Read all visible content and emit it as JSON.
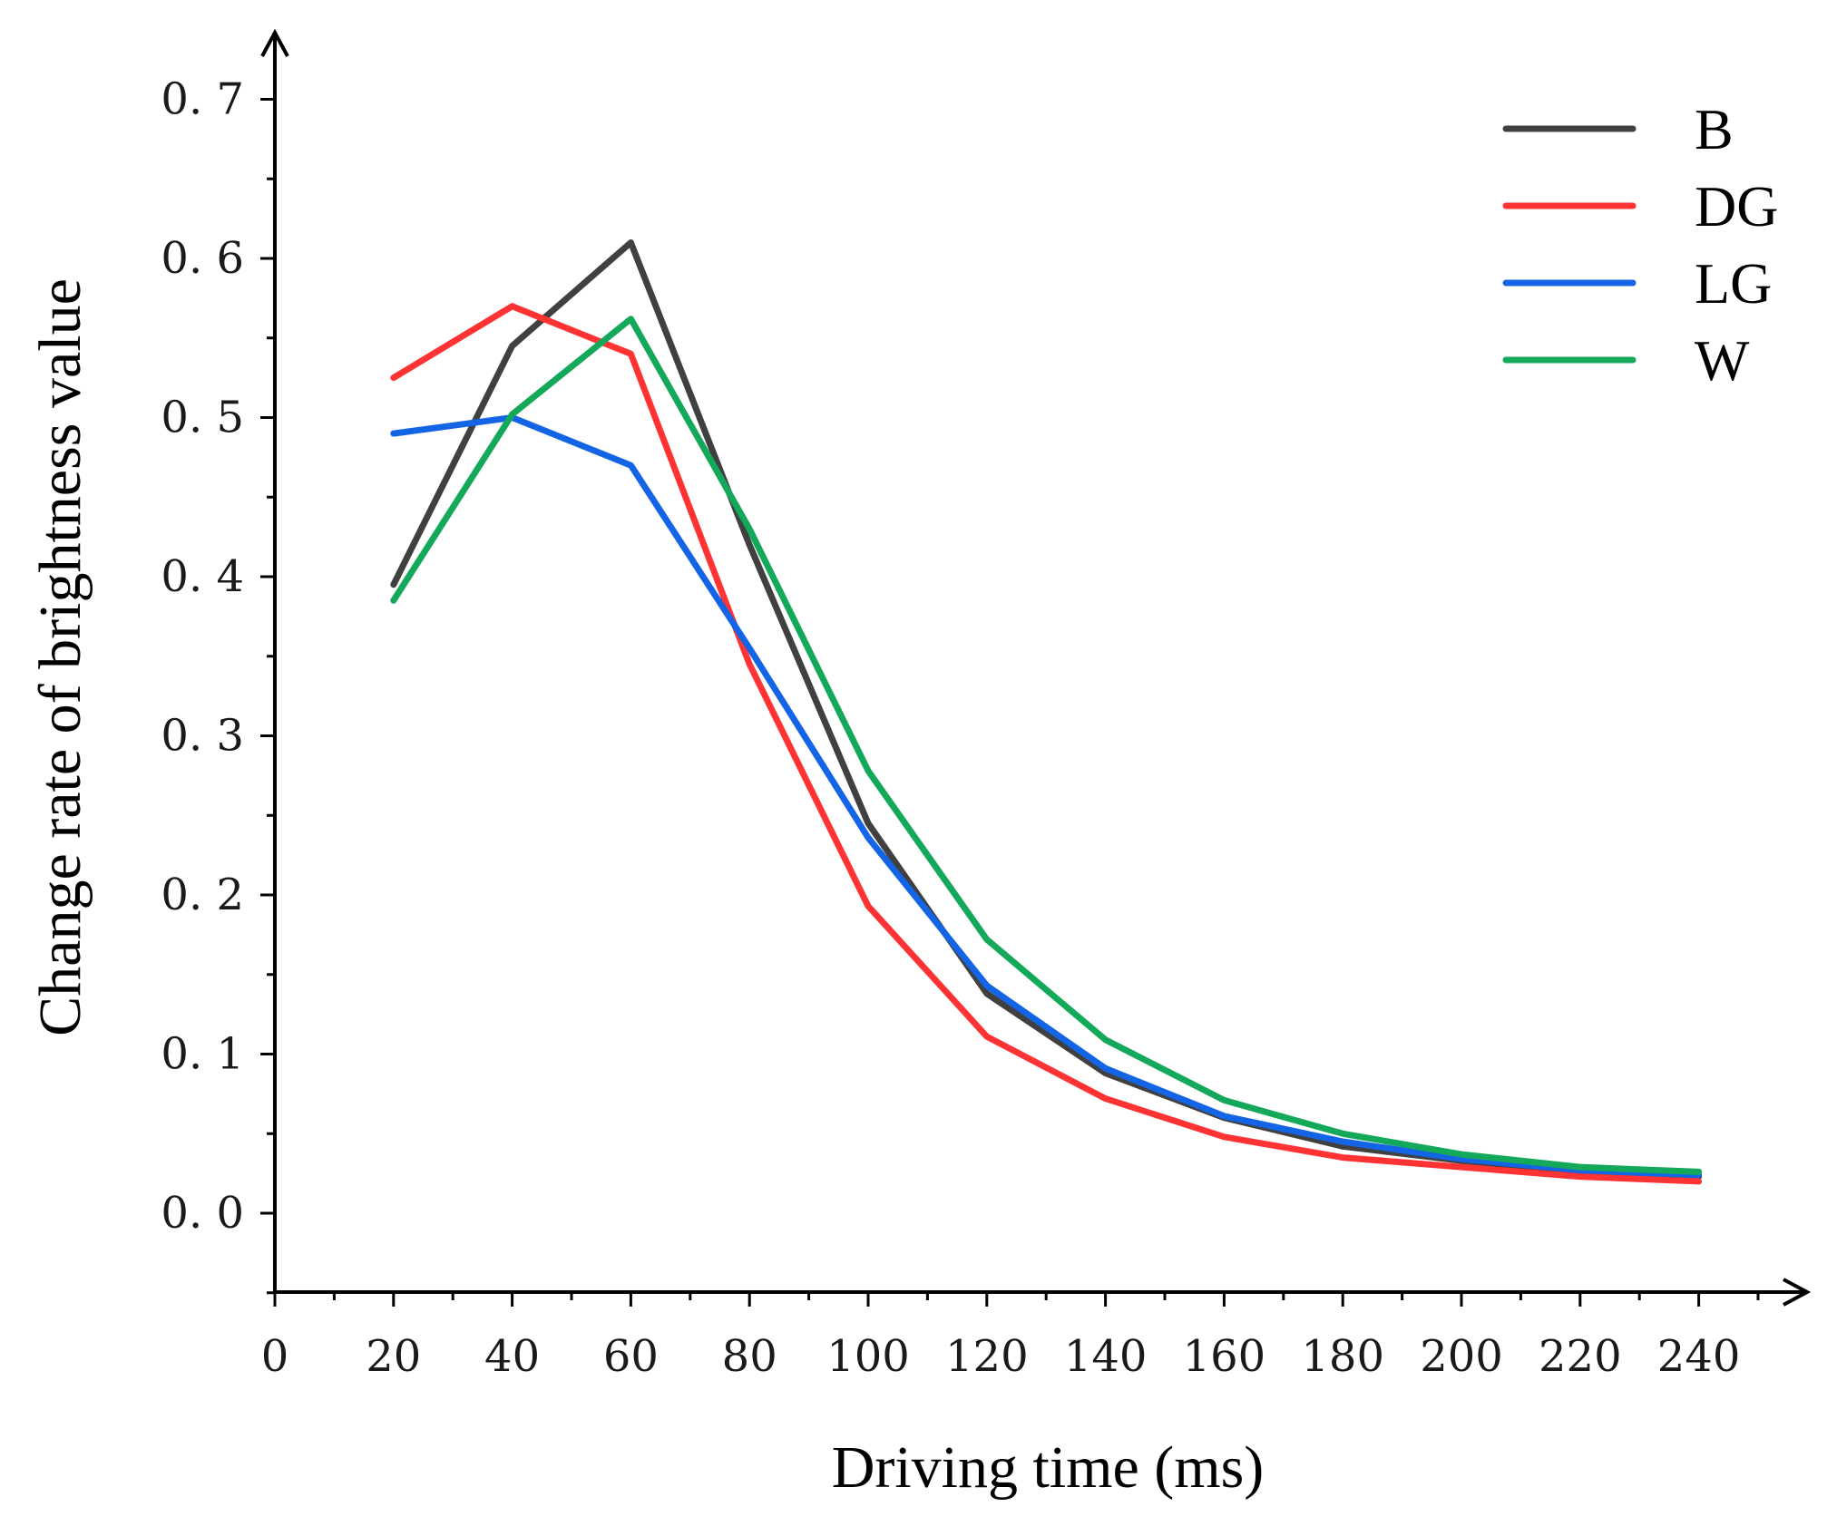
{
  "chart_data": {
    "type": "line",
    "title": "",
    "xlabel": "Driving time (ms)",
    "ylabel": "Change rate of brightness value",
    "x": [
      20,
      40,
      60,
      80,
      100,
      120,
      140,
      160,
      180,
      200,
      220,
      240
    ],
    "xlim": [
      0,
      250
    ],
    "ylim": [
      -0.05,
      0.7
    ],
    "x_ticks": [
      0,
      20,
      40,
      60,
      80,
      100,
      120,
      140,
      160,
      180,
      200,
      220,
      240
    ],
    "x_tick_labels": [
      "0",
      "20",
      "40",
      "60",
      "80",
      "100",
      "120",
      "140",
      "160",
      "180",
      "200",
      "220",
      "240"
    ],
    "y_ticks": [
      0.0,
      0.1,
      0.2,
      0.3,
      0.4,
      0.5,
      0.6,
      0.7
    ],
    "y_tick_labels": [
      "0. 0",
      "0. 1",
      "0. 2",
      "0. 3",
      "0. 4",
      "0. 5",
      "0. 6",
      "0. 7"
    ],
    "grid": false,
    "legend_position": "top-right",
    "series": [
      {
        "name": "B",
        "color": "#404040",
        "values": [
          0.395,
          0.545,
          0.61,
          0.42,
          0.245,
          0.138,
          0.088,
          0.06,
          0.042,
          0.033,
          0.026,
          0.023
        ]
      },
      {
        "name": "DG",
        "color": "#ff3333",
        "values": [
          0.525,
          0.57,
          0.54,
          0.345,
          0.193,
          0.111,
          0.072,
          0.048,
          0.035,
          0.029,
          0.023,
          0.02
        ]
      },
      {
        "name": "LG",
        "color": "#1464e6",
        "values": [
          0.49,
          0.5,
          0.47,
          0.355,
          0.236,
          0.143,
          0.091,
          0.061,
          0.045,
          0.034,
          0.027,
          0.024
        ]
      },
      {
        "name": "W",
        "color": "#14a85a",
        "values": [
          0.385,
          0.502,
          0.562,
          0.43,
          0.278,
          0.172,
          0.109,
          0.071,
          0.05,
          0.037,
          0.029,
          0.026
        ]
      }
    ]
  }
}
